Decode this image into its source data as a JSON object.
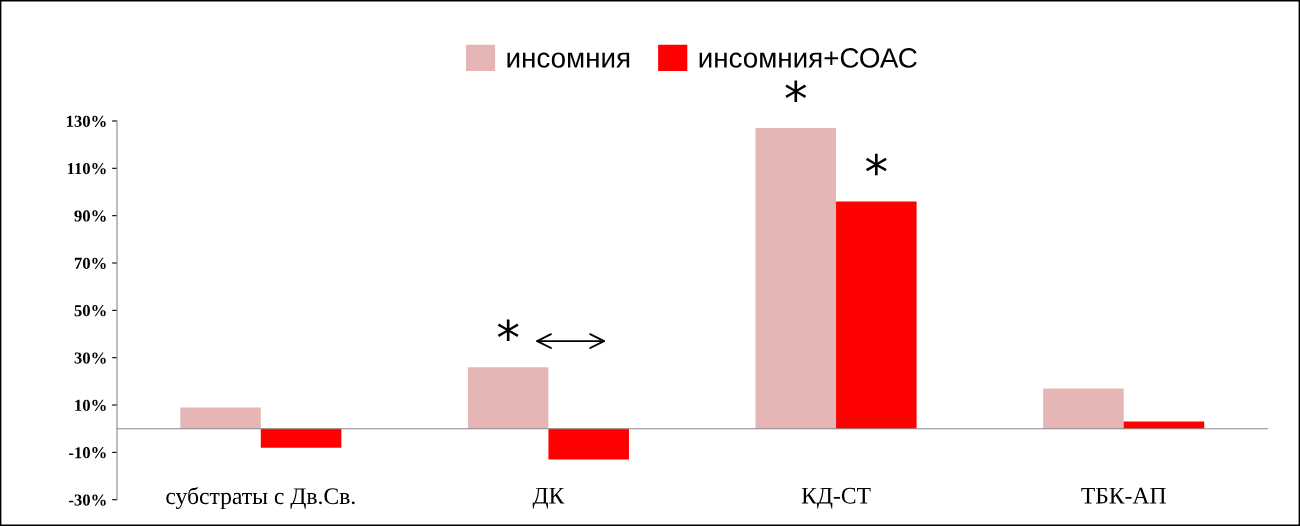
{
  "chart_data": {
    "type": "bar",
    "categories": [
      "субстраты с Дв.Св.",
      "ДК",
      "КД-СТ",
      "ТБК-АП"
    ],
    "series": [
      {
        "name": "инсомния",
        "color": "#e6b5b5",
        "values": [
          9,
          26,
          127,
          17
        ]
      },
      {
        "name": "инсомния+СОАС",
        "color": "#ff0000",
        "values": [
          -8,
          -13,
          96,
          3
        ]
      }
    ],
    "ylim": [
      -30,
      130
    ],
    "yticks": [
      {
        "value": -30,
        "label": "-30%"
      },
      {
        "value": -10,
        "label": "-10%"
      },
      {
        "value": 10,
        "label": "10%"
      },
      {
        "value": 30,
        "label": "30%"
      },
      {
        "value": 50,
        "label": "50%"
      },
      {
        "value": 70,
        "label": "70%"
      },
      {
        "value": 90,
        "label": "90%"
      },
      {
        "value": 110,
        "label": "110%"
      },
      {
        "value": 130,
        "label": "130%"
      }
    ],
    "annotations": [
      {
        "text": "*",
        "x": "ДК",
        "y": 26
      },
      {
        "text": "*",
        "x": "КД-СТ",
        "y": 127
      },
      {
        "text": "*",
        "x": "КД-СТ",
        "y": 96
      }
    ],
    "grid": false,
    "legend": "top"
  }
}
